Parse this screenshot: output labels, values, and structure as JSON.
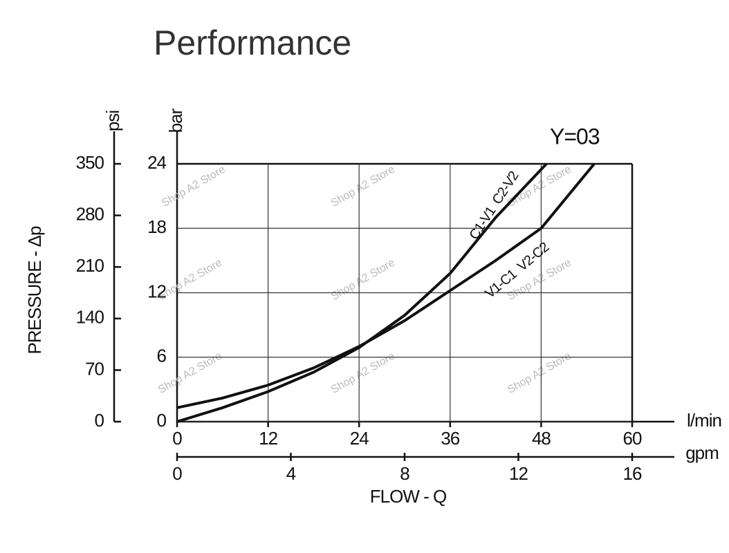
{
  "chart_data": {
    "type": "line",
    "title": "Performance",
    "annotation": "Y=03",
    "watermark": "Shop A2 Store",
    "x_label": "FLOW - Q",
    "x_unit": "l/min",
    "x2_unit": "gpm",
    "y_label": "PRESSURE - Δp",
    "y_unit": "bar",
    "y2_unit": "psi",
    "xlim": [
      0,
      60
    ],
    "xticks": [
      0,
      12,
      24,
      36,
      48,
      60
    ],
    "x2lim": [
      0,
      16
    ],
    "x2ticks": [
      0,
      4,
      8,
      12,
      16
    ],
    "ylim": [
      0,
      24
    ],
    "yticks": [
      0,
      6,
      12,
      18,
      24
    ],
    "y2lim": [
      0,
      350
    ],
    "y2ticks": [
      0,
      70,
      140,
      210,
      280,
      350
    ],
    "grid": true,
    "series": [
      {
        "name": "C1-V1  C2-V2",
        "color": "#111111",
        "x": [
          0,
          6,
          12,
          18,
          24,
          30,
          36,
          42,
          48.7
        ],
        "values": [
          0,
          1.3,
          2.8,
          4.6,
          6.9,
          9.9,
          13.8,
          19,
          24
        ]
      },
      {
        "name": "V1-C1  V2-C2",
        "color": "#111111",
        "x": [
          0,
          6,
          12,
          18,
          24,
          30,
          36,
          42,
          48,
          55
        ],
        "values": [
          1.3,
          2.2,
          3.4,
          5.0,
          7.0,
          9.4,
          12.2,
          15.0,
          18,
          24
        ]
      }
    ]
  }
}
